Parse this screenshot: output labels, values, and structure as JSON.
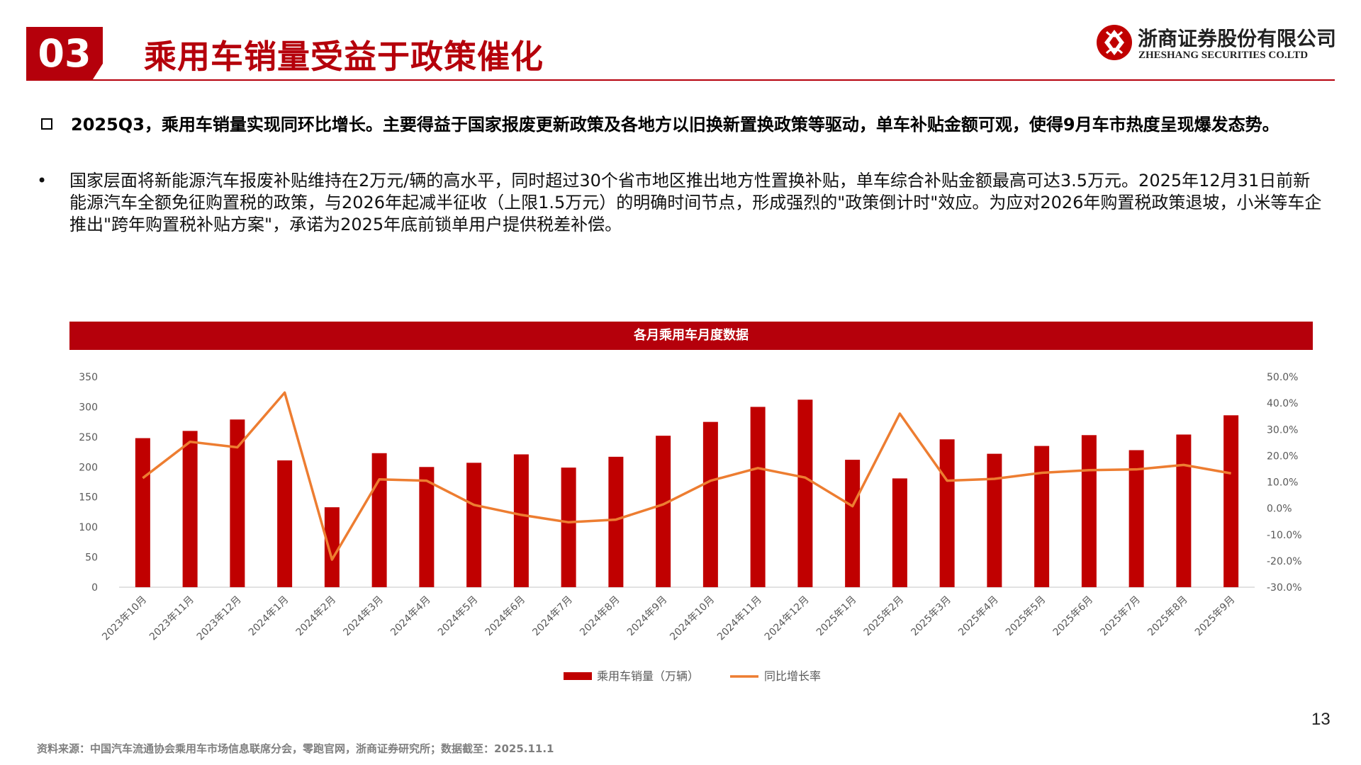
{
  "header": {
    "section_number": "03",
    "title": "乘用车销量受益于政策催化",
    "logo_cn": "浙商证券股份有限公司",
    "logo_en": "ZHESHANG SECURITIES CO.LTD",
    "brand_color": "#b5000b"
  },
  "summary": {
    "headline": "2025Q3，乘用车销量实现同环比增长。主要得益于国家报废更新政策及各地方以旧换新置换政策等驱动，单车补贴金额可观，使得9月车市热度呈现爆发态势。",
    "bullet_symbol": "•",
    "bullet_text": "国家层面将新能源汽车报废补贴维持在2万元/辆的高水平，同时超过30个省市地区推出地方性置换补贴，单车综合补贴金额最高可达3.5万元。2025年12月31日前新能源汽车全额免征购置税的政策，与2026年起减半征收（上限1.5万元）的明确时间节点，形成强烈的\"政策倒计时\"效应。为应对2026年购置税政策退坡，小米等车企推出\"跨年购置税补贴方案\"，承诺为2025年底前锁单用户提供税差补偿。"
  },
  "chart_data": {
    "type": "bar",
    "title": "各月乘用车月度数据",
    "categories": [
      "2023年10月",
      "2023年11月",
      "2023年12月",
      "2024年1月",
      "2024年2月",
      "2024年3月",
      "2024年4月",
      "2024年5月",
      "2024年6月",
      "2024年7月",
      "2024年8月",
      "2024年9月",
      "2024年10月",
      "2024年11月",
      "2024年12月",
      "2025年1月",
      "2025年2月",
      "2025年3月",
      "2025年4月",
      "2025年5月",
      "2025年6月",
      "2025年7月",
      "2025年8月",
      "2025年9月"
    ],
    "series": [
      {
        "name": "乘用车销量（万辆）",
        "type": "bar",
        "axis": "left",
        "color": "#c00000",
        "values": [
          248,
          260,
          279,
          211,
          133,
          223,
          200,
          207,
          221,
          199,
          217,
          252,
          275,
          300,
          312,
          212,
          181,
          246,
          222,
          235,
          253,
          228,
          254,
          286
        ]
      },
      {
        "name": "同比增长率",
        "type": "line",
        "axis": "right",
        "color": "#ed7d31",
        "values": [
          11.5,
          25.3,
          23.2,
          44.0,
          -19.5,
          11.0,
          10.5,
          1.3,
          -2.5,
          -5.3,
          -4.3,
          1.5,
          10.5,
          15.3,
          11.7,
          0.8,
          36.0,
          10.5,
          11.2,
          13.5,
          14.5,
          14.8,
          16.5,
          13.3
        ]
      }
    ],
    "y_left": {
      "min": 0,
      "max": 350,
      "step": 50,
      "ticks": [
        "0",
        "50",
        "100",
        "150",
        "200",
        "250",
        "300",
        "350"
      ]
    },
    "y_right": {
      "min": -30,
      "max": 50,
      "step": 10,
      "ticks": [
        "-30.0%",
        "-20.0%",
        "-10.0%",
        "0.0%",
        "10.0%",
        "20.0%",
        "30.0%",
        "40.0%",
        "50.0%"
      ]
    },
    "legend_position": "bottom",
    "grid": false
  },
  "footer": {
    "source": "资料来源：中国汽车流通协会乘用车市场信息联席分会，零跑官网，浙商证券研究所；数据截至：2025.11.1",
    "page_number": "13"
  }
}
